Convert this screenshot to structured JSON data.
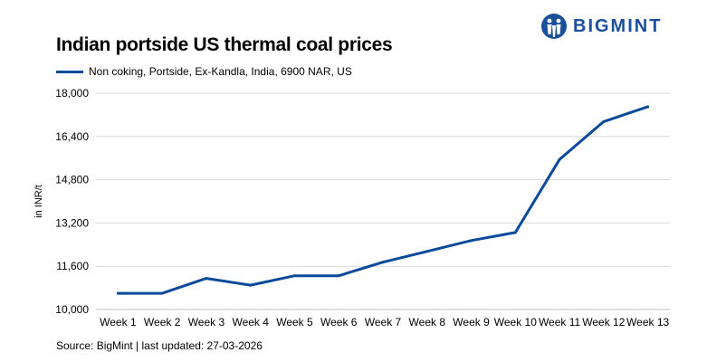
{
  "brand": {
    "name": "BIGMINT",
    "color": "#1a4f9c"
  },
  "chart_data": {
    "type": "line",
    "title": "Indian portside US thermal coal prices",
    "ylabel": "in INR/t",
    "xlabel": "",
    "ylim": [
      10000,
      18000
    ],
    "yticks": [
      "10,000",
      "11,600",
      "13,200",
      "14,800",
      "16,400",
      "18,000"
    ],
    "ytick_values": [
      10000,
      11600,
      13200,
      14800,
      16400,
      18000
    ],
    "grid": true,
    "legend_position": "top-left",
    "categories": [
      "Week 1",
      "Week 2",
      "Week 3",
      "Week 4",
      "Week 5",
      "Week 6",
      "Week 7",
      "Week 8",
      "Week 9",
      "Week 10",
      "Week 11",
      "Week 12",
      "Week 13"
    ],
    "series": [
      {
        "name": "Non coking, Portside, Ex-Kandla, India, 6900 NAR, US",
        "color": "#0b4a9a",
        "values": [
          10600,
          10600,
          11150,
          10900,
          11250,
          11250,
          11750,
          12150,
          12550,
          12850,
          15550,
          16950,
          17500
        ]
      }
    ]
  },
  "footer": {
    "source": "Source: BigMint | last updated: 27-03-2026"
  }
}
